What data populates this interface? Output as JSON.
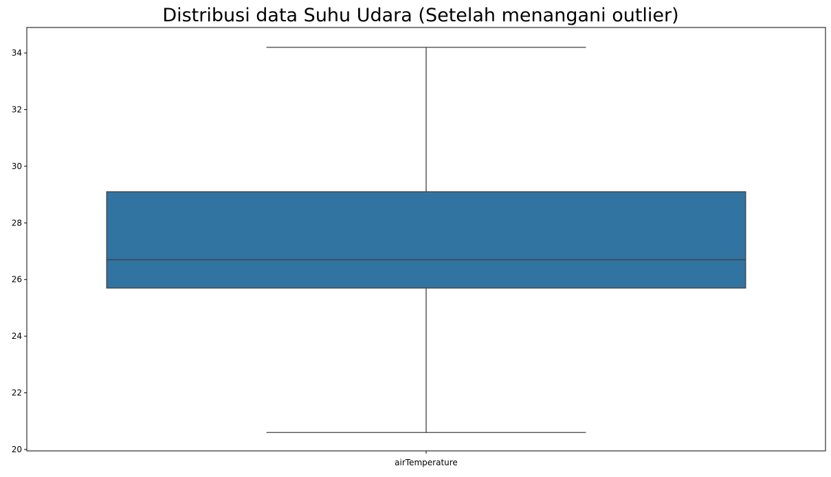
{
  "chart_data": {
    "type": "box",
    "title": "Distribusi data Suhu Udara (Setelah menangani outlier)",
    "xlabel": "",
    "ylabel": "",
    "categories": [
      "airTemperature"
    ],
    "series": [
      {
        "category": "airTemperature",
        "whisker_low": 20.6,
        "q1": 25.7,
        "median": 26.7,
        "q3": 29.1,
        "whisker_high": 34.2,
        "outliers": []
      }
    ],
    "y_ticks": [
      20,
      22,
      24,
      26,
      28,
      30,
      32,
      34
    ],
    "ylim": [
      19.95,
      34.9
    ],
    "grid": false,
    "legend": "none",
    "colors": {
      "box_fill": "#3274a1",
      "lines": "#3f3f3f",
      "axes": "#000000"
    }
  }
}
